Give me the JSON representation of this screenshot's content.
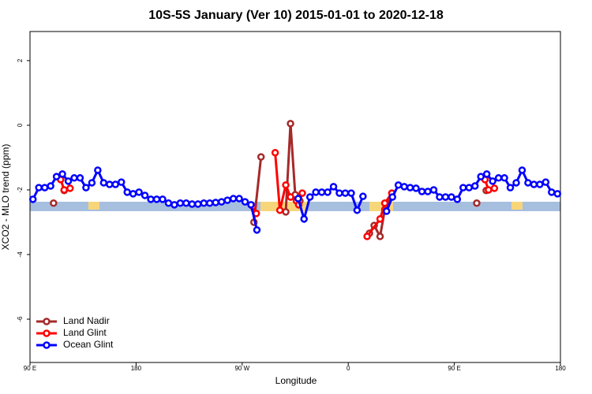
{
  "chart_data": {
    "type": "line",
    "title": "10S-5S January (Ver 10)   2015-01-01 to 2020-12-18",
    "xlabel": "Longitude",
    "ylabel": "XCO2 - MLO trend (ppm)",
    "xlim": [
      90,
      540
    ],
    "ylim": [
      -7.34,
      2.9
    ],
    "xticks": [
      {
        "value": 90,
        "label": "90 E"
      },
      {
        "value": 180,
        "label": "180"
      },
      {
        "value": 270,
        "label": "90 W"
      },
      {
        "value": 360,
        "label": "0"
      },
      {
        "value": 450,
        "label": "90 E"
      },
      {
        "value": 540,
        "label": "180"
      }
    ],
    "yticks": [
      2,
      0,
      -2,
      -4,
      -6
    ],
    "legend": "lower left",
    "series": [
      {
        "name": "Land Nadir",
        "color": "#a52a2a",
        "x": [
          110,
          114,
          119,
          200,
          280,
          286,
          296,
          307,
          311,
          315,
          319,
          350,
          378,
          382,
          387,
          391,
          397,
          430,
          469,
          473,
          477
        ],
        "values": [
          -2.41,
          null,
          -2.02,
          null,
          -3.0,
          -0.98,
          null,
          -2.68,
          0.05,
          -2.15,
          -2.34,
          null,
          -3.34,
          -3.1,
          -3.44,
          -2.61,
          -2.1,
          null,
          -2.41,
          null,
          -2.02
        ]
      },
      {
        "name": "Land Glint",
        "color": "#ff0000",
        "x": [
          116,
          119,
          124,
          200,
          279,
          282,
          290,
          298,
          302,
          307,
          311,
          316,
          318,
          321,
          350,
          376,
          387,
          391,
          397,
          430,
          476,
          479,
          484
        ],
        "values": [
          -1.68,
          -2.0,
          -1.95,
          null,
          -2.51,
          -2.73,
          null,
          -0.85,
          -2.63,
          -1.85,
          -2.22,
          -2.34,
          -2.46,
          -2.1,
          null,
          -3.44,
          -2.9,
          -2.41,
          -2.1,
          null,
          -1.68,
          -2.0,
          -1.95
        ]
      },
      {
        "name": "Ocean Glint",
        "color": "#0000ff",
        "x": [
          92.5,
          97.5,
          102.5,
          107.5,
          112.5,
          117.5,
          122.5,
          127.5,
          132.5,
          137.5,
          142.5,
          147.5,
          152.5,
          157.5,
          162.5,
          167.5,
          172.5,
          177.5,
          182.5,
          187.5,
          192.5,
          197.5,
          202.5,
          207.5,
          212.5,
          217.5,
          222.5,
          227.5,
          232.5,
          237.5,
          242.5,
          247.5,
          252.5,
          257.5,
          262.5,
          267.5,
          272.5,
          277.5,
          282.5,
          287.5,
          292.5,
          297.5,
          302.5,
          307.5,
          312.5,
          317.5,
          322.5,
          327.5,
          332.5,
          337.5,
          342.5,
          347.5,
          352.5,
          357.5,
          362.5,
          367.5,
          372.5,
          377.5,
          382.5,
          387.5,
          392.5,
          397.5,
          402.5,
          407.5,
          412.5,
          417.5,
          422.5,
          427.5,
          432.5,
          437.5,
          442.5,
          447.5,
          452.5,
          457.5,
          462.5,
          467.5,
          472.5,
          477.5,
          482.5,
          487.5,
          492.5,
          497.5,
          502.5,
          507.5,
          512.5,
          517.5,
          522.5,
          527.5,
          532.5,
          537.5
        ],
        "values": [
          -2.29,
          -1.93,
          -1.93,
          -1.88,
          -1.59,
          -1.51,
          -1.73,
          -1.63,
          -1.63,
          -1.93,
          -1.78,
          -1.39,
          -1.78,
          -1.83,
          -1.83,
          -1.76,
          -2.07,
          -2.12,
          -2.07,
          -2.17,
          -2.29,
          -2.29,
          -2.29,
          -2.41,
          -2.46,
          -2.41,
          -2.41,
          -2.44,
          -2.44,
          -2.41,
          -2.41,
          -2.39,
          -2.37,
          -2.32,
          -2.27,
          -2.27,
          -2.37,
          -2.46,
          -3.24,
          null,
          null,
          null,
          null,
          null,
          null,
          -2.27,
          -2.9,
          -2.22,
          -2.07,
          -2.07,
          -2.07,
          -1.9,
          -2.1,
          -2.1,
          -2.1,
          -2.63,
          -2.2,
          null,
          null,
          null,
          -2.66,
          -2.22,
          -1.85,
          -1.9,
          -1.93,
          -1.95,
          -2.05,
          -2.05,
          -2.0,
          -2.22,
          -2.22,
          -2.22,
          -2.29,
          -1.93,
          -1.93,
          -1.88,
          -1.59,
          -1.51,
          -1.73,
          -1.63,
          -1.63,
          -1.93,
          -1.78,
          -1.39,
          -1.78,
          -1.83,
          -1.83,
          -1.76,
          -2.07,
          -2.12
        ]
      }
    ]
  }
}
